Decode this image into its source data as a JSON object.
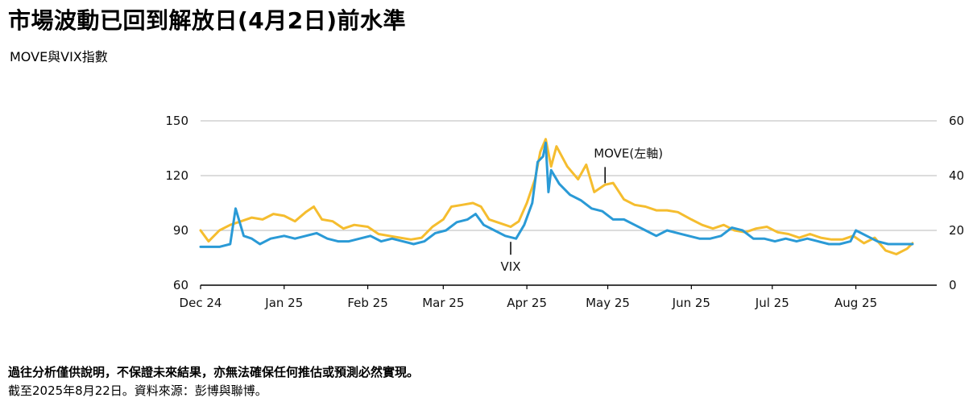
{
  "title": "市場波動已回到解放日(4月2日)前水準",
  "subtitle": "MOVE與VIX指數",
  "footnote": "過往分析僅供說明，不保證未來結果，亦無法確保任何推估或預測必然實現。",
  "source": "截至2025年8月22日。資料來源：彭博與聯博。",
  "chart_data": {
    "type": "line",
    "x_range": [
      "2024-12-01",
      "2025-08-31"
    ],
    "x_ticks": [
      "Dec 24",
      "Jan 25",
      "Feb 25",
      "Mar 25",
      "Apr 25",
      "May 25",
      "Jun 25",
      "Jul 25",
      "Aug 25"
    ],
    "y_left": {
      "ticks": [
        "60",
        "90",
        "120",
        "150"
      ],
      "range": [
        60,
        150
      ]
    },
    "y_right": {
      "ticks": [
        "0",
        "20",
        "40",
        "60"
      ],
      "range": [
        0,
        60
      ]
    },
    "grid": true,
    "series": [
      {
        "name": "MOVE(左軸)",
        "axis": "left",
        "color": "#F5BD2F",
        "points": [
          [
            "2024-12-01",
            90
          ],
          [
            "2024-12-04",
            84
          ],
          [
            "2024-12-08",
            90
          ],
          [
            "2024-12-12",
            93
          ],
          [
            "2024-12-16",
            95
          ],
          [
            "2024-12-20",
            97
          ],
          [
            "2024-12-24",
            96
          ],
          [
            "2024-12-28",
            99
          ],
          [
            "2025-01-01",
            98
          ],
          [
            "2025-01-05",
            95
          ],
          [
            "2025-01-09",
            100
          ],
          [
            "2025-01-12",
            103
          ],
          [
            "2025-01-15",
            96
          ],
          [
            "2025-01-19",
            95
          ],
          [
            "2025-01-23",
            91
          ],
          [
            "2025-01-27",
            93
          ],
          [
            "2025-02-01",
            92
          ],
          [
            "2025-02-05",
            88
          ],
          [
            "2025-02-09",
            87
          ],
          [
            "2025-02-13",
            86
          ],
          [
            "2025-02-17",
            85
          ],
          [
            "2025-02-21",
            86
          ],
          [
            "2025-02-25",
            92
          ],
          [
            "2025-03-01",
            96
          ],
          [
            "2025-03-04",
            103
          ],
          [
            "2025-03-08",
            104
          ],
          [
            "2025-03-12",
            105
          ],
          [
            "2025-03-15",
            103
          ],
          [
            "2025-03-18",
            96
          ],
          [
            "2025-03-22",
            94
          ],
          [
            "2025-03-26",
            92
          ],
          [
            "2025-03-29",
            95
          ],
          [
            "2025-04-01",
            105
          ],
          [
            "2025-04-04",
            118
          ],
          [
            "2025-04-06",
            133
          ],
          [
            "2025-04-08",
            140
          ],
          [
            "2025-04-10",
            125
          ],
          [
            "2025-04-12",
            136
          ],
          [
            "2025-04-16",
            125
          ],
          [
            "2025-04-20",
            118
          ],
          [
            "2025-04-23",
            126
          ],
          [
            "2025-04-26",
            111
          ],
          [
            "2025-04-30",
            115
          ],
          [
            "2025-05-03",
            116
          ],
          [
            "2025-05-07",
            107
          ],
          [
            "2025-05-11",
            104
          ],
          [
            "2025-05-15",
            103
          ],
          [
            "2025-05-19",
            101
          ],
          [
            "2025-05-23",
            101
          ],
          [
            "2025-05-27",
            100
          ],
          [
            "2025-06-01",
            96
          ],
          [
            "2025-06-05",
            93
          ],
          [
            "2025-06-09",
            91
          ],
          [
            "2025-06-13",
            93
          ],
          [
            "2025-06-17",
            90
          ],
          [
            "2025-06-21",
            89
          ],
          [
            "2025-06-25",
            91
          ],
          [
            "2025-06-29",
            92
          ],
          [
            "2025-07-03",
            89
          ],
          [
            "2025-07-07",
            88
          ],
          [
            "2025-07-11",
            86
          ],
          [
            "2025-07-15",
            88
          ],
          [
            "2025-07-19",
            86
          ],
          [
            "2025-07-23",
            85
          ],
          [
            "2025-07-27",
            85
          ],
          [
            "2025-07-31",
            87
          ],
          [
            "2025-08-04",
            83
          ],
          [
            "2025-08-08",
            86
          ],
          [
            "2025-08-12",
            79
          ],
          [
            "2025-08-16",
            77
          ],
          [
            "2025-08-20",
            80
          ],
          [
            "2025-08-22",
            83
          ]
        ]
      },
      {
        "name": "VIX",
        "axis": "right",
        "color": "#2A9AD6",
        "points": [
          [
            "2024-12-01",
            14
          ],
          [
            "2024-12-04",
            14
          ],
          [
            "2024-12-08",
            14
          ],
          [
            "2024-12-12",
            15
          ],
          [
            "2024-12-14",
            28
          ],
          [
            "2024-12-17",
            18
          ],
          [
            "2024-12-20",
            17
          ],
          [
            "2024-12-23",
            15
          ],
          [
            "2024-12-27",
            17
          ],
          [
            "2025-01-01",
            18
          ],
          [
            "2025-01-05",
            17
          ],
          [
            "2025-01-09",
            18
          ],
          [
            "2025-01-13",
            19
          ],
          [
            "2025-01-17",
            17
          ],
          [
            "2025-01-21",
            16
          ],
          [
            "2025-01-25",
            16
          ],
          [
            "2025-01-29",
            17
          ],
          [
            "2025-02-02",
            18
          ],
          [
            "2025-02-06",
            16
          ],
          [
            "2025-02-10",
            17
          ],
          [
            "2025-02-14",
            16
          ],
          [
            "2025-02-18",
            15
          ],
          [
            "2025-02-22",
            16
          ],
          [
            "2025-02-26",
            19
          ],
          [
            "2025-03-02",
            20
          ],
          [
            "2025-03-06",
            23
          ],
          [
            "2025-03-10",
            24
          ],
          [
            "2025-03-13",
            26
          ],
          [
            "2025-03-16",
            22
          ],
          [
            "2025-03-20",
            20
          ],
          [
            "2025-03-24",
            18
          ],
          [
            "2025-03-28",
            17
          ],
          [
            "2025-03-31",
            22
          ],
          [
            "2025-04-03",
            30
          ],
          [
            "2025-04-05",
            45
          ],
          [
            "2025-04-07",
            47
          ],
          [
            "2025-04-08",
            52
          ],
          [
            "2025-04-09",
            34
          ],
          [
            "2025-04-10",
            42
          ],
          [
            "2025-04-13",
            37
          ],
          [
            "2025-04-17",
            33
          ],
          [
            "2025-04-21",
            31
          ],
          [
            "2025-04-25",
            28
          ],
          [
            "2025-04-29",
            27
          ],
          [
            "2025-05-03",
            24
          ],
          [
            "2025-05-07",
            24
          ],
          [
            "2025-05-11",
            22
          ],
          [
            "2025-05-15",
            20
          ],
          [
            "2025-05-19",
            18
          ],
          [
            "2025-05-23",
            20
          ],
          [
            "2025-05-27",
            19
          ],
          [
            "2025-05-31",
            18
          ],
          [
            "2025-06-04",
            17
          ],
          [
            "2025-06-08",
            17
          ],
          [
            "2025-06-12",
            18
          ],
          [
            "2025-06-16",
            21
          ],
          [
            "2025-06-20",
            20
          ],
          [
            "2025-06-24",
            17
          ],
          [
            "2025-06-28",
            17
          ],
          [
            "2025-07-02",
            16
          ],
          [
            "2025-07-06",
            17
          ],
          [
            "2025-07-10",
            16
          ],
          [
            "2025-07-14",
            17
          ],
          [
            "2025-07-18",
            16
          ],
          [
            "2025-07-22",
            15
          ],
          [
            "2025-07-26",
            15
          ],
          [
            "2025-07-30",
            16
          ],
          [
            "2025-08-01",
            20
          ],
          [
            "2025-08-05",
            18
          ],
          [
            "2025-08-09",
            16
          ],
          [
            "2025-08-13",
            15
          ],
          [
            "2025-08-17",
            15
          ],
          [
            "2025-08-22",
            15
          ]
        ]
      }
    ],
    "annotations": [
      {
        "text": "MOVE(左軸)",
        "series": "MOVE(左軸)",
        "date": "2025-04-30",
        "value": 115
      },
      {
        "text": "VIX",
        "series": "VIX",
        "date": "2025-03-26",
        "value": 17
      }
    ]
  }
}
